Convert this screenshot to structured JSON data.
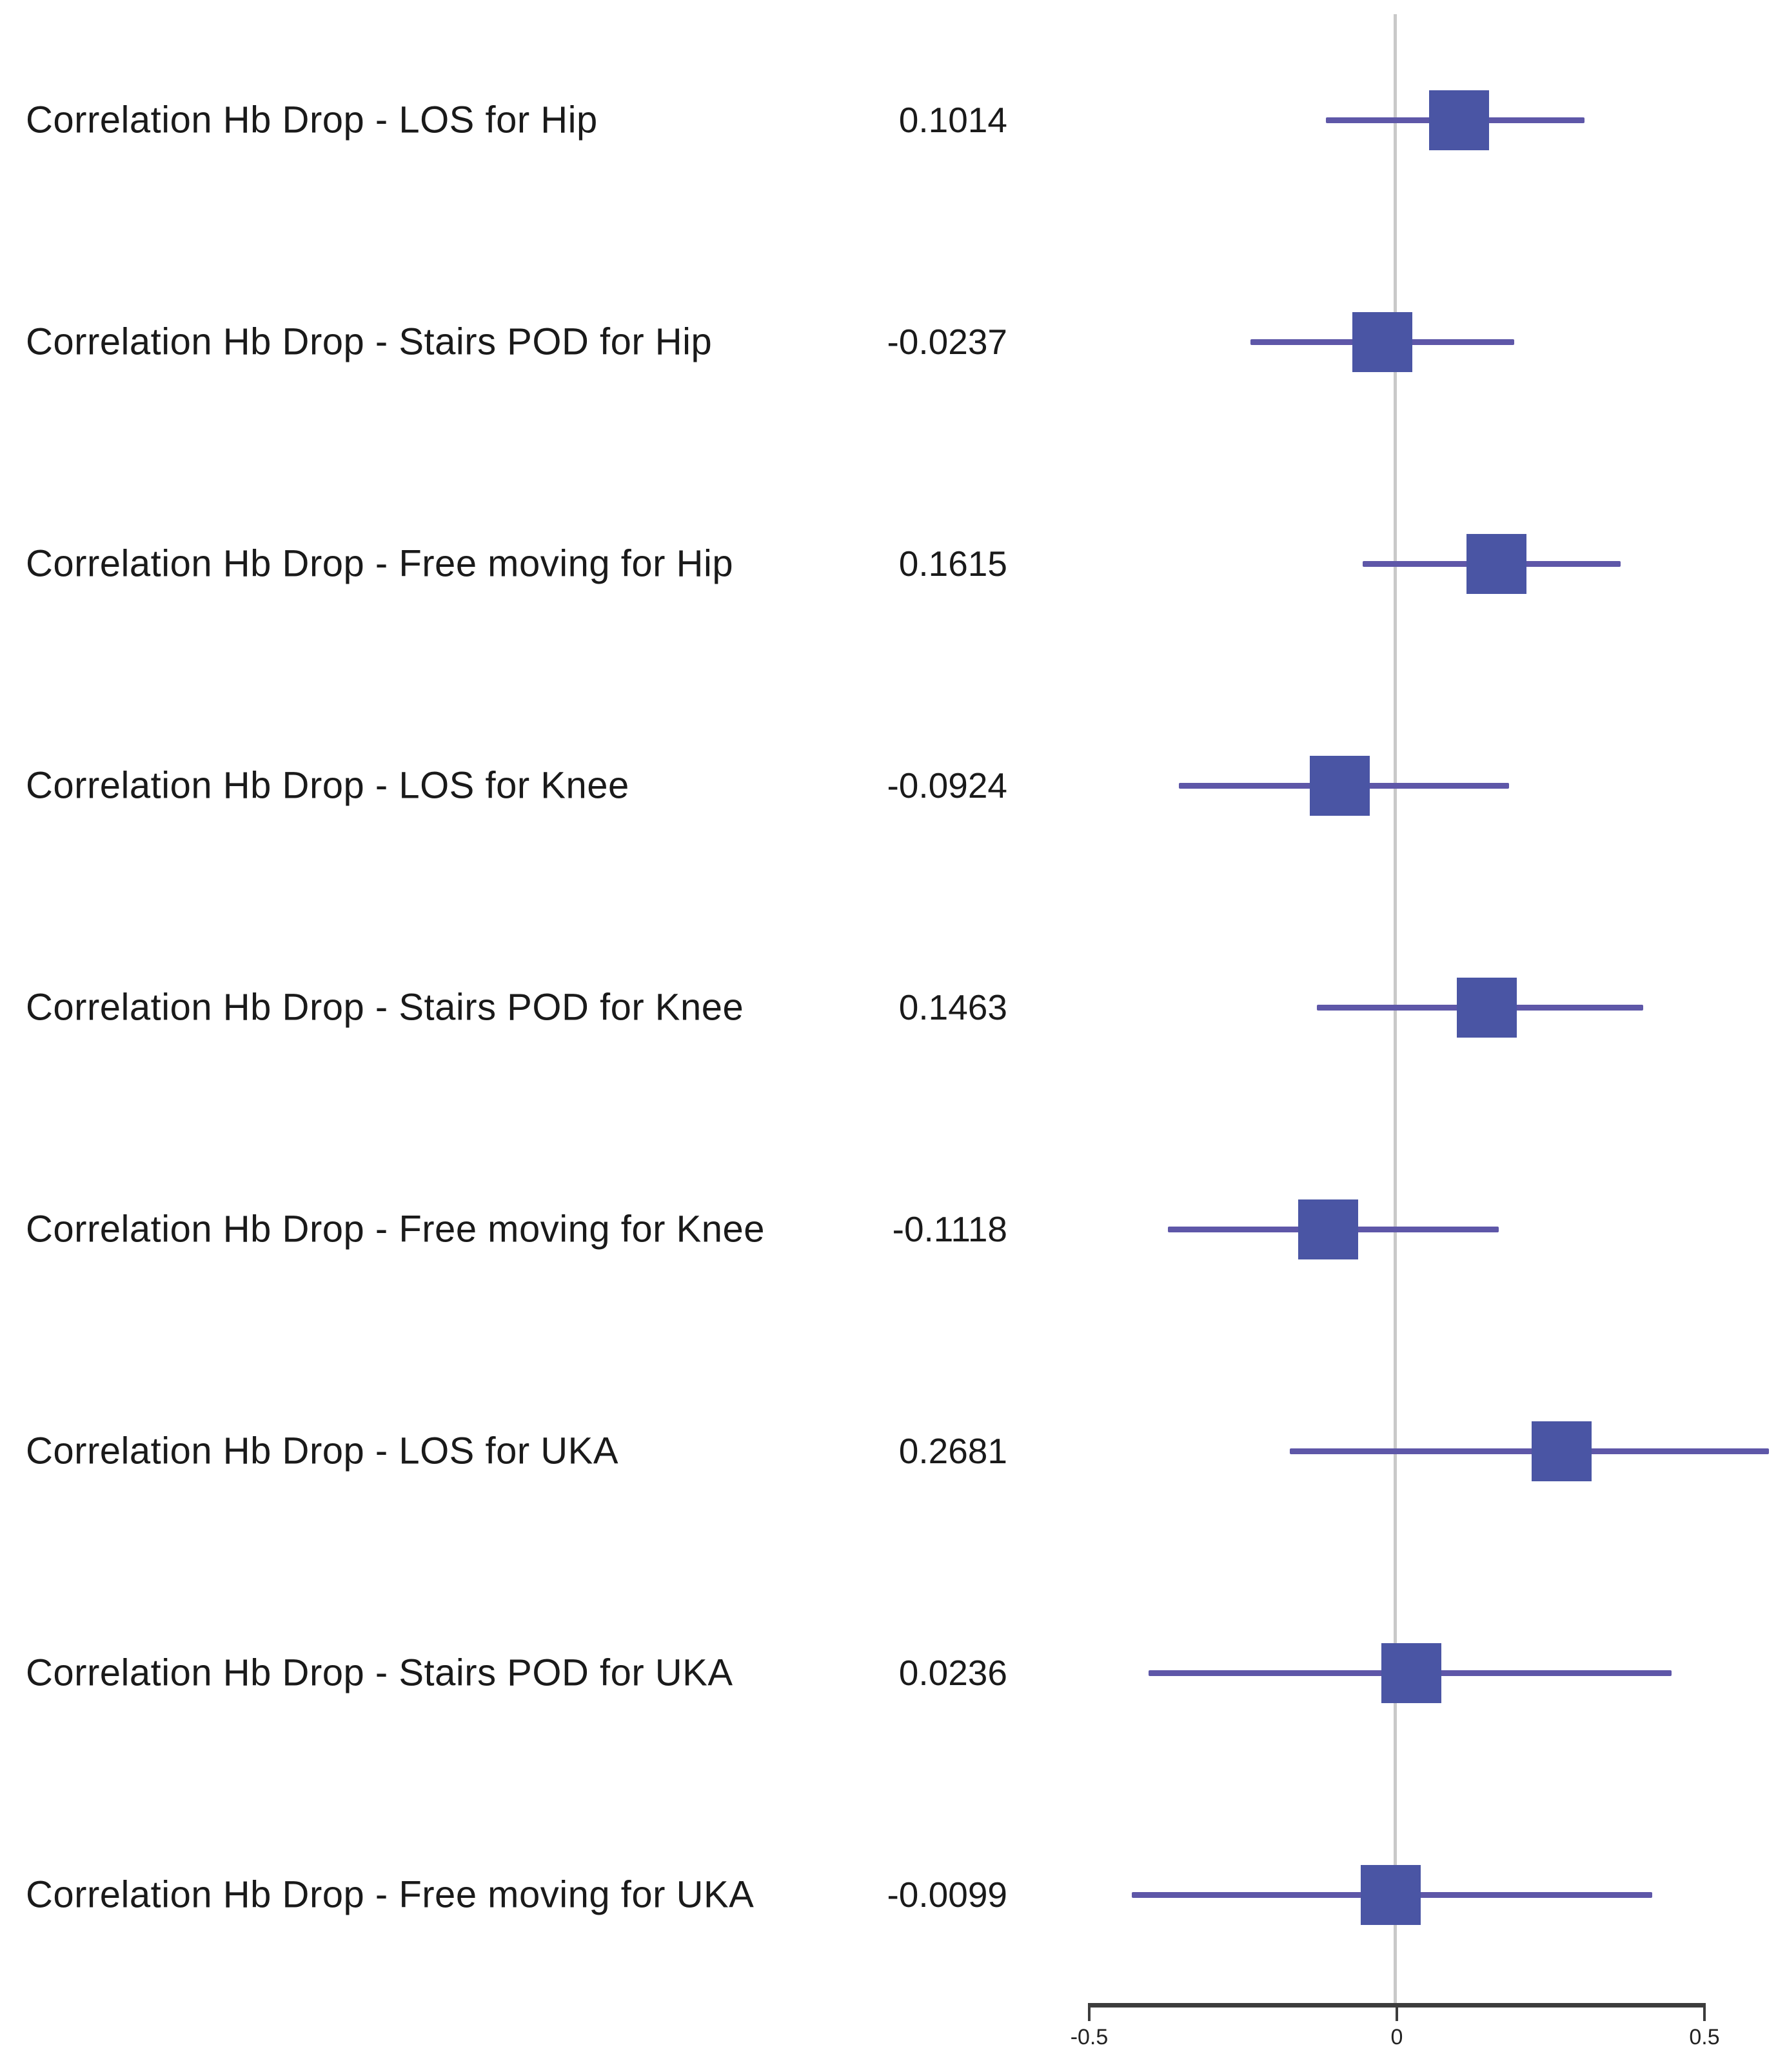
{
  "chart_data": {
    "type": "forest",
    "title": "",
    "description": "Forest plot of correlations between Hb drop and postoperative mobility outcomes per procedure",
    "rows": [
      {
        "label": "Correlation Hb Drop - LOS for Hip",
        "value_label": "0.1014",
        "estimate": 0.1014,
        "ci_low": -0.115,
        "ci_high": 0.305
      },
      {
        "label": "Correlation Hb Drop - Stairs POD for Hip",
        "value_label": "-0.0237",
        "estimate": -0.0237,
        "ci_low": -0.238,
        "ci_high": 0.191
      },
      {
        "label": "Correlation Hb Drop - Free moving for Hip",
        "value_label": "0.1615",
        "estimate": 0.1615,
        "ci_low": -0.056,
        "ci_high": 0.364
      },
      {
        "label": "Correlation Hb Drop - LOS for Knee",
        "value_label": "-0.0924",
        "estimate": -0.0924,
        "ci_low": -0.354,
        "ci_high": 0.182
      },
      {
        "label": "Correlation Hb Drop - Stairs POD for Knee",
        "value_label": "0.1463",
        "estimate": 0.1463,
        "ci_low": -0.13,
        "ci_high": 0.4
      },
      {
        "label": "Correlation Hb Drop - Free moving for Knee",
        "value_label": "-0.1118",
        "estimate": -0.1118,
        "ci_low": -0.372,
        "ci_high": 0.166
      },
      {
        "label": "Correlation Hb Drop - LOS for UKA",
        "value_label": "0.2681",
        "estimate": 0.2681,
        "ci_low": -0.174,
        "ci_high": 0.605
      },
      {
        "label": "Correlation Hb Drop - Stairs POD for UKA",
        "value_label": "0.0236",
        "estimate": 0.0236,
        "ci_low": -0.404,
        "ci_high": 0.447
      },
      {
        "label": "Correlation Hb Drop - Free moving for UKA",
        "value_label": "-0.0099",
        "estimate": -0.0099,
        "ci_low": -0.431,
        "ci_high": 0.415
      }
    ],
    "x_axis": {
      "range": [
        -0.5,
        0.5
      ],
      "ticks": [
        -0.5,
        0,
        0.5
      ],
      "tick_labels": [
        "-0.5",
        "0",
        "0.5"
      ]
    },
    "zero_line": 0,
    "legend": null,
    "grid": false,
    "colors": {
      "marker": "#4a55a4",
      "ci_line": "#5e57a8",
      "zero_line": "#c9c9c9",
      "axis": "#3d3d3d",
      "text": "#1a1a1a",
      "tick_text": "#222222"
    }
  }
}
